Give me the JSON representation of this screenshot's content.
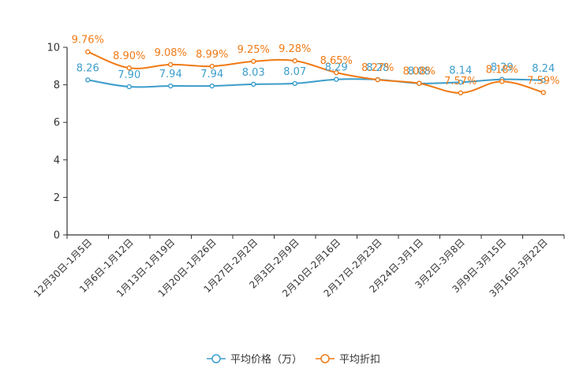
{
  "chart_data": {
    "type": "line",
    "title": "",
    "xlabel": "",
    "ylabel": "",
    "ylim": [
      0,
      10
    ],
    "yticks": [
      0,
      2,
      4,
      6,
      8,
      10
    ],
    "grid": false,
    "legend_position": "bottom-center",
    "categories": [
      "12月30日-1月5日",
      "1月6日-1月12日",
      "1月13日-1月19日",
      "1月20日-1月26日",
      "1月27日-2月2日",
      "2月3日-2月9日",
      "2月10日-2月16日",
      "2月17日-2月23日",
      "2月24日-3月1日",
      "3月2日-3月8日",
      "3月9日-3月15日",
      "3月16日-3月22日"
    ],
    "series": [
      {
        "name": "平均价格（万）",
        "color": "#3c9dcb",
        "values": [
          8.26,
          7.9,
          7.94,
          7.94,
          8.03,
          8.07,
          8.29,
          8.28,
          8.08,
          8.14,
          8.29,
          8.24
        ],
        "labels": [
          "8.26",
          "7.90",
          "7.94",
          "7.94",
          "8.03",
          "8.07",
          "8.29",
          "8.28",
          "8.08",
          "8.14",
          "8.29",
          "8.24"
        ]
      },
      {
        "name": "平均折扣",
        "color": "#f07a15",
        "values": [
          9.76,
          8.9,
          9.08,
          8.99,
          9.25,
          9.28,
          8.65,
          8.27,
          8.08,
          7.57,
          8.18,
          7.59
        ],
        "labels": [
          "9.76%",
          "8.90%",
          "9.08%",
          "8.99%",
          "9.25%",
          "9.28%",
          "8.65%",
          "8.27%",
          "8.08%",
          "7.57%",
          "8.18%",
          "7.59%"
        ]
      }
    ]
  }
}
